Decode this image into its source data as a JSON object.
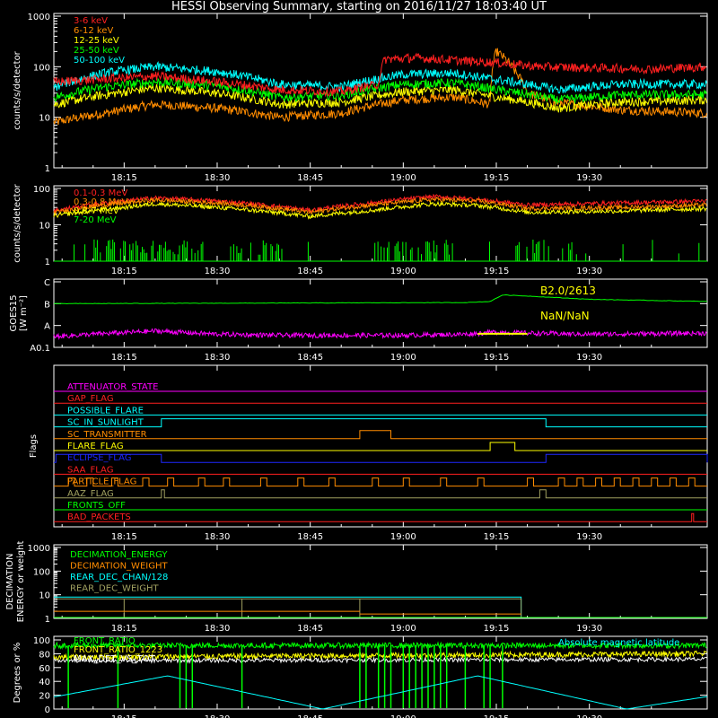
{
  "title": "HESSI Observing Summary, starting on 2016/11/27 18:03:40 UT",
  "colors": {
    "red": "#ff2020",
    "orange": "#ff8c00",
    "yellow": "#ffff00",
    "green": "#00ff00",
    "cyan": "#00ffff",
    "magenta": "#ff00ff",
    "blue": "#1e28ff",
    "olive": "#a0a060",
    "white": "#ffffff"
  },
  "time_axis": {
    "start_minutes": 3.67,
    "end_minutes": 109.0,
    "tick_labels": [
      "18:15",
      "18:30",
      "18:45",
      "19:00",
      "19:15",
      "19:30"
    ],
    "tick_minutes": [
      15,
      30,
      45,
      60,
      75,
      90
    ]
  },
  "chart_data": [
    {
      "type": "line",
      "name": "x-ray",
      "ylabel": "counts/s/detector",
      "yscale": "log",
      "ylim": [
        1,
        1000
      ],
      "ytick_labels": [
        "1",
        "10",
        "100",
        "1000"
      ],
      "legend": "top-left",
      "series": [
        {
          "name": "3-6 keV",
          "color": "red",
          "points": [
            [
              4,
              50
            ],
            [
              15,
              60
            ],
            [
              20,
              65
            ],
            [
              30,
              50
            ],
            [
              40,
              35
            ],
            [
              50,
              32
            ],
            [
              56,
              45
            ],
            [
              57,
              140
            ],
            [
              62,
              150
            ],
            [
              70,
              130
            ],
            [
              75,
              120
            ],
            [
              78,
              110
            ],
            [
              82,
              100
            ],
            [
              90,
              95
            ],
            [
              100,
              90
            ],
            [
              109,
              100
            ]
          ]
        },
        {
          "name": "6-12 keV",
          "color": "orange",
          "points": [
            [
              4,
              8
            ],
            [
              12,
              12
            ],
            [
              20,
              18
            ],
            [
              30,
              15
            ],
            [
              40,
              10
            ],
            [
              50,
              12
            ],
            [
              60,
              22
            ],
            [
              68,
              25
            ],
            [
              74,
              18
            ],
            [
              75,
              200
            ],
            [
              78,
              80
            ],
            [
              80,
              30
            ],
            [
              84,
              20
            ],
            [
              95,
              14
            ],
            [
              109,
              12
            ]
          ]
        },
        {
          "name": "12-25 keV",
          "color": "yellow",
          "points": [
            [
              4,
              18
            ],
            [
              12,
              28
            ],
            [
              20,
              38
            ],
            [
              30,
              30
            ],
            [
              40,
              18
            ],
            [
              50,
              20
            ],
            [
              60,
              32
            ],
            [
              68,
              35
            ],
            [
              75,
              25
            ],
            [
              85,
              15
            ],
            [
              95,
              20
            ],
            [
              109,
              22
            ]
          ]
        },
        {
          "name": "25-50 keV",
          "color": "green",
          "points": [
            [
              4,
              25
            ],
            [
              12,
              40
            ],
            [
              20,
              50
            ],
            [
              30,
              42
            ],
            [
              40,
              25
            ],
            [
              50,
              27
            ],
            [
              60,
              45
            ],
            [
              68,
              48
            ],
            [
              75,
              35
            ],
            [
              85,
              22
            ],
            [
              95,
              28
            ],
            [
              109,
              28
            ]
          ]
        },
        {
          "name": "50-100 keV",
          "color": "cyan",
          "points": [
            [
              4,
              40
            ],
            [
              12,
              75
            ],
            [
              20,
              100
            ],
            [
              30,
              80
            ],
            [
              40,
              45
            ],
            [
              50,
              40
            ],
            [
              60,
              70
            ],
            [
              68,
              75
            ],
            [
              75,
              55
            ],
            [
              85,
              35
            ],
            [
              95,
              45
            ],
            [
              109,
              45
            ]
          ]
        }
      ]
    },
    {
      "type": "line",
      "name": "gamma",
      "ylabel": "counts/s/detector",
      "yscale": "log",
      "ylim": [
        1,
        100
      ],
      "ytick_labels": [
        "1",
        "10",
        "100"
      ],
      "legend": "top-left",
      "series": [
        {
          "name": "0.1-0.3 MeV",
          "color": "red",
          "points": [
            [
              4,
              25
            ],
            [
              15,
              45
            ],
            [
              20,
              55
            ],
            [
              30,
              45
            ],
            [
              45,
              25
            ],
            [
              55,
              40
            ],
            [
              65,
              60
            ],
            [
              72,
              50
            ],
            [
              80,
              35
            ],
            [
              95,
              40
            ],
            [
              109,
              45
            ]
          ]
        },
        {
          "name": "0.3-0.8 MeV",
          "color": "orange",
          "points": [
            [
              4,
              22
            ],
            [
              15,
              40
            ],
            [
              20,
              48
            ],
            [
              30,
              40
            ],
            [
              45,
              22
            ],
            [
              55,
              35
            ],
            [
              65,
              50
            ],
            [
              72,
              45
            ],
            [
              80,
              28
            ],
            [
              95,
              30
            ],
            [
              109,
              35
            ]
          ]
        },
        {
          "name": "0.8-7 MeV",
          "color": "yellow",
          "points": [
            [
              4,
              18
            ],
            [
              15,
              30
            ],
            [
              20,
              38
            ],
            [
              30,
              30
            ],
            [
              45,
              17
            ],
            [
              55,
              25
            ],
            [
              65,
              38
            ],
            [
              72,
              34
            ],
            [
              80,
              22
            ],
            [
              95,
              24
            ],
            [
              109,
              28
            ]
          ]
        },
        {
          "name": "7-20 MeV",
          "color": "green",
          "points": [
            [
              4,
              1
            ],
            [
              109,
              1
            ]
          ]
        }
      ]
    },
    {
      "type": "line",
      "name": "goes",
      "ylabel": "GOES15",
      "yunit": "[W m⁻²]",
      "ytick_labels": [
        "A0.1",
        "A",
        "B",
        "C"
      ],
      "annotations": [
        "B2.0/2613",
        "NaN/NaN"
      ],
      "series": [
        {
          "name": "long",
          "color": "green",
          "points": [
            [
              4,
              2.0
            ],
            [
              70,
              2.05
            ],
            [
              74,
              2.1
            ],
            [
              76,
              2.4
            ],
            [
              80,
              2.35
            ],
            [
              90,
              2.2
            ],
            [
              109,
              2.1
            ]
          ]
        },
        {
          "name": "short",
          "color": "magenta",
          "points": [
            [
              4,
              0.5
            ],
            [
              10,
              0.6
            ],
            [
              20,
              0.75
            ],
            [
              30,
              0.6
            ],
            [
              40,
              0.55
            ],
            [
              50,
              0.55
            ],
            [
              60,
              0.55
            ],
            [
              70,
              0.6
            ],
            [
              75,
              0.7
            ],
            [
              80,
              0.65
            ],
            [
              90,
              0.6
            ],
            [
              109,
              0.65
            ]
          ]
        }
      ]
    },
    {
      "type": "line",
      "name": "flags",
      "ylabel": "Flags",
      "flags": [
        {
          "label": "ATTENUATOR_STATE",
          "color": "magenta",
          "intervals": []
        },
        {
          "label": "GAP_FLAG",
          "color": "red",
          "intervals": []
        },
        {
          "label": "POSSIBLE_FLARE",
          "color": "cyan",
          "intervals": []
        },
        {
          "label": "SC_IN_SUNLIGHT",
          "color": "cyan",
          "intervals": [
            [
              21,
              83
            ]
          ]
        },
        {
          "label": "SC_TRANSMITTER",
          "color": "orange",
          "intervals": [
            [
              53,
              58
            ]
          ]
        },
        {
          "label": "FLARE_FLAG",
          "color": "yellow",
          "intervals": [
            [
              74,
              78
            ]
          ]
        },
        {
          "label": "ECLIPSE_FLAG",
          "color": "blue",
          "intervals": [
            [
              4,
              21
            ],
            [
              83,
              109
            ]
          ]
        },
        {
          "label": "SAA_FLAG",
          "color": "red",
          "intervals": []
        },
        {
          "label": "PARTICLE_FLAG",
          "color": "orange",
          "intervals": [
            [
              6,
              7
            ],
            [
              9,
              10
            ],
            [
              13,
              14
            ],
            [
              18,
              19
            ],
            [
              22,
              23
            ],
            [
              27,
              28
            ],
            [
              31,
              32
            ],
            [
              37,
              38
            ],
            [
              43,
              44
            ],
            [
              48,
              49
            ],
            [
              55,
              56
            ],
            [
              60,
              61
            ],
            [
              66,
              67
            ],
            [
              72,
              73
            ],
            [
              80,
              81
            ],
            [
              85,
              86
            ],
            [
              88,
              89
            ],
            [
              91,
              92
            ],
            [
              94,
              95
            ],
            [
              97,
              98
            ],
            [
              100,
              101
            ],
            [
              103,
              104
            ],
            [
              106,
              107
            ]
          ]
        },
        {
          "label": "AAZ_FLAG",
          "color": "olive",
          "intervals": [
            [
              21,
              21.5
            ],
            [
              82,
              83
            ]
          ]
        },
        {
          "label": "FRONTS_OFF",
          "color": "green",
          "intervals": []
        },
        {
          "label": "BAD_PACKETS",
          "color": "red",
          "intervals": [
            [
              106.5,
              106.8
            ]
          ]
        }
      ]
    },
    {
      "type": "line",
      "name": "decimation",
      "ylabel": "DECIMATION ENERGY or weight",
      "yscale": "log",
      "ylim": [
        1,
        1000
      ],
      "ytick_labels": [
        "1",
        "10",
        "100",
        "1000"
      ],
      "legend": "top-left",
      "series": [
        {
          "name": "DECIMATION_ENERGY",
          "color": "green",
          "points": [
            [
              4,
              1
            ],
            [
              109,
              1
            ]
          ]
        },
        {
          "name": "DECIMATION_WEIGHT",
          "color": "orange",
          "points": [
            [
              4,
              1
            ],
            [
              109,
              1
            ]
          ]
        },
        {
          "name": "REAR_DEC_CHAN/128",
          "color": "cyan",
          "points": [
            [
              4,
              8
            ],
            [
              79,
              8
            ]
          ]
        },
        {
          "name": "REAR_DEC_WEIGHT",
          "color": "olive",
          "points": [
            [
              4,
              8
            ],
            [
              79,
              8
            ]
          ]
        }
      ]
    },
    {
      "type": "line",
      "name": "ratios",
      "ylabel": "Degrees or %",
      "ylim": [
        0,
        100
      ],
      "ytick_labels": [
        "0",
        "20",
        "40",
        "60",
        "80",
        "100"
      ],
      "annotations": [
        "Absolute magnetic latitude"
      ],
      "series": [
        {
          "name": "FRONT_RATIO",
          "color": "green",
          "points": [
            [
              4,
              92
            ],
            [
              109,
              92
            ]
          ]
        },
        {
          "name": "FRONT_RATIO_1223",
          "color": "yellow",
          "points": [
            [
              4,
              75
            ],
            [
              109,
              80
            ]
          ]
        },
        {
          "name": "MAX_DET_VS_TOT",
          "color": "white",
          "points": [
            [
              4,
              70
            ],
            [
              109,
              72
            ]
          ]
        },
        {
          "name": "Absolute magnetic latitude",
          "color": "cyan",
          "points": [
            [
              4,
              18
            ],
            [
              22,
              48
            ],
            [
              47,
              0
            ],
            [
              72,
              48
            ],
            [
              96,
              0
            ],
            [
              109,
              18
            ]
          ]
        }
      ]
    }
  ]
}
